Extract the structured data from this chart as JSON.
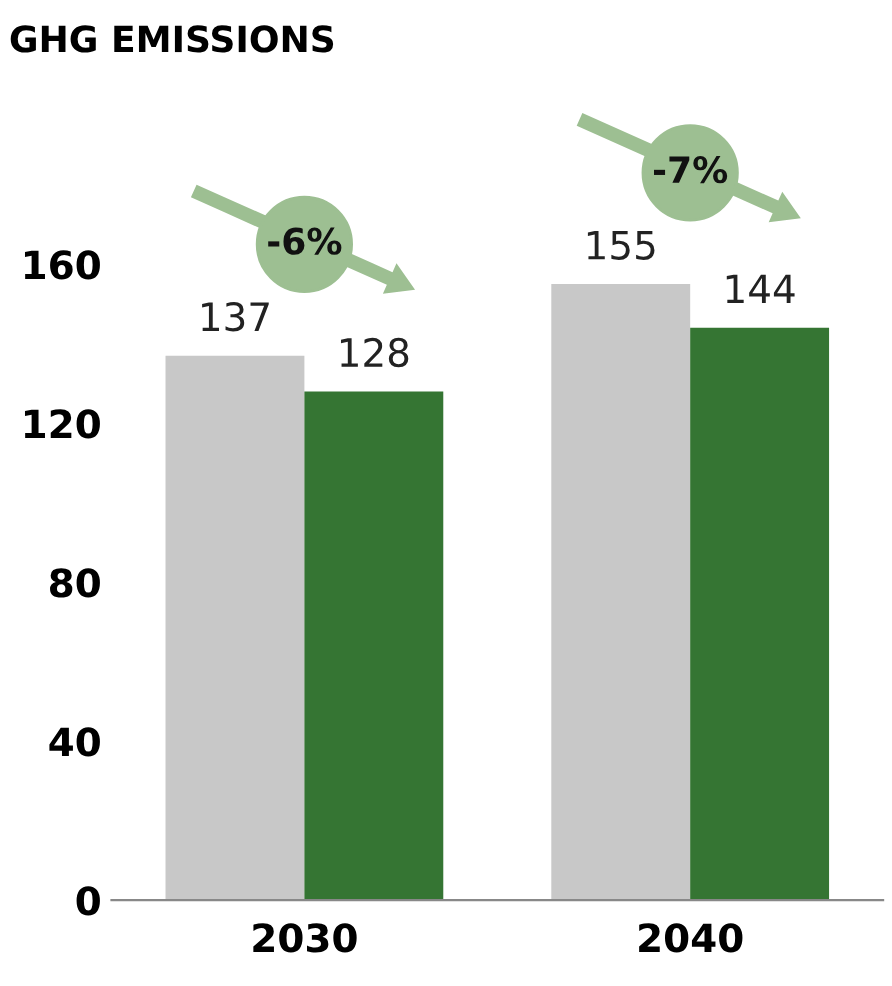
{
  "chart_data": {
    "type": "bar",
    "title": "GHG EMISSIONS",
    "categories": [
      "2030",
      "2040"
    ],
    "series": [
      {
        "color": "#c8c8c8",
        "values": [
          137,
          155
        ]
      },
      {
        "color": "#357533",
        "values": [
          128,
          144
        ]
      }
    ],
    "ylim": [
      0,
      160
    ],
    "yticks": [
      0,
      40,
      80,
      120,
      160
    ],
    "grid": false,
    "data_labels": true,
    "annotations": [
      "-6%",
      "-7%"
    ]
  }
}
